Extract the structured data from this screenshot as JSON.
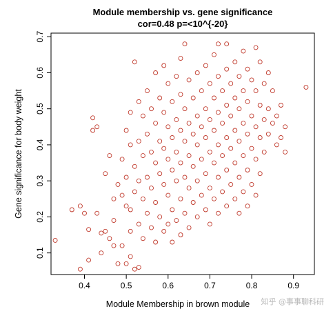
{
  "chart_data": {
    "type": "scatter",
    "title": "Module membership vs. gene significance",
    "subtitle": "cor=0.48 p=<10^{-20}",
    "xlabel": "Module Membership in brown module",
    "ylabel": "Gene significance for body weight",
    "xlim": [
      0.32,
      0.95
    ],
    "ylim": [
      0.04,
      0.71
    ],
    "x_ticks": [
      "0.4",
      "0.5",
      "0.6",
      "0.7",
      "0.8",
      "0.9"
    ],
    "y_ticks": [
      "0.1",
      "0.2",
      "0.3",
      "0.4",
      "0.5",
      "0.6",
      "0.7"
    ],
    "point_color": "#c0392b",
    "grid": false,
    "watermark": "知乎 @事事聊科研",
    "points": [
      [
        0.33,
        0.135
      ],
      [
        0.37,
        0.22
      ],
      [
        0.39,
        0.23
      ],
      [
        0.39,
        0.055
      ],
      [
        0.4,
        0.21
      ],
      [
        0.41,
        0.165
      ],
      [
        0.41,
        0.08
      ],
      [
        0.42,
        0.475
      ],
      [
        0.42,
        0.44
      ],
      [
        0.43,
        0.45
      ],
      [
        0.43,
        0.21
      ],
      [
        0.44,
        0.155
      ],
      [
        0.44,
        0.1
      ],
      [
        0.45,
        0.32
      ],
      [
        0.45,
        0.16
      ],
      [
        0.46,
        0.14
      ],
      [
        0.46,
        0.37
      ],
      [
        0.47,
        0.19
      ],
      [
        0.47,
        0.25
      ],
      [
        0.47,
        0.12
      ],
      [
        0.48,
        0.29
      ],
      [
        0.48,
        0.07
      ],
      [
        0.49,
        0.12
      ],
      [
        0.49,
        0.26
      ],
      [
        0.49,
        0.36
      ],
      [
        0.5,
        0.44
      ],
      [
        0.5,
        0.31
      ],
      [
        0.5,
        0.23
      ],
      [
        0.5,
        0.07
      ],
      [
        0.51,
        0.49
      ],
      [
        0.51,
        0.4
      ],
      [
        0.51,
        0.22
      ],
      [
        0.51,
        0.16
      ],
      [
        0.51,
        0.09
      ],
      [
        0.52,
        0.63
      ],
      [
        0.52,
        0.34
      ],
      [
        0.52,
        0.27
      ],
      [
        0.52,
        0.055
      ],
      [
        0.53,
        0.52
      ],
      [
        0.53,
        0.41
      ],
      [
        0.53,
        0.3
      ],
      [
        0.53,
        0.18
      ],
      [
        0.53,
        0.06
      ],
      [
        0.54,
        0.48
      ],
      [
        0.54,
        0.37
      ],
      [
        0.54,
        0.25
      ],
      [
        0.54,
        0.14
      ],
      [
        0.55,
        0.55
      ],
      [
        0.55,
        0.43
      ],
      [
        0.55,
        0.31
      ],
      [
        0.55,
        0.21
      ],
      [
        0.56,
        0.5
      ],
      [
        0.56,
        0.38
      ],
      [
        0.56,
        0.28
      ],
      [
        0.56,
        0.17
      ],
      [
        0.57,
        0.6
      ],
      [
        0.57,
        0.46
      ],
      [
        0.57,
        0.35
      ],
      [
        0.57,
        0.24
      ],
      [
        0.57,
        0.13
      ],
      [
        0.58,
        0.53
      ],
      [
        0.58,
        0.41
      ],
      [
        0.58,
        0.32
      ],
      [
        0.58,
        0.2
      ],
      [
        0.59,
        0.62
      ],
      [
        0.59,
        0.49
      ],
      [
        0.59,
        0.39
      ],
      [
        0.59,
        0.29
      ],
      [
        0.59,
        0.16
      ],
      [
        0.6,
        0.57
      ],
      [
        0.6,
        0.45
      ],
      [
        0.6,
        0.36
      ],
      [
        0.6,
        0.26
      ],
      [
        0.6,
        0.18
      ],
      [
        0.61,
        0.52
      ],
      [
        0.61,
        0.42
      ],
      [
        0.61,
        0.33
      ],
      [
        0.61,
        0.22
      ],
      [
        0.61,
        0.13
      ],
      [
        0.62,
        0.59
      ],
      [
        0.62,
        0.47
      ],
      [
        0.62,
        0.38
      ],
      [
        0.62,
        0.3
      ],
      [
        0.62,
        0.19
      ],
      [
        0.63,
        0.64
      ],
      [
        0.63,
        0.54
      ],
      [
        0.63,
        0.44
      ],
      [
        0.63,
        0.35
      ],
      [
        0.63,
        0.25
      ],
      [
        0.63,
        0.15
      ],
      [
        0.64,
        0.68
      ],
      [
        0.64,
        0.5
      ],
      [
        0.64,
        0.41
      ],
      [
        0.64,
        0.31
      ],
      [
        0.64,
        0.21
      ],
      [
        0.65,
        0.58
      ],
      [
        0.65,
        0.46
      ],
      [
        0.65,
        0.37
      ],
      [
        0.65,
        0.28
      ],
      [
        0.65,
        0.17
      ],
      [
        0.66,
        0.53
      ],
      [
        0.66,
        0.43
      ],
      [
        0.66,
        0.34
      ],
      [
        0.66,
        0.24
      ],
      [
        0.67,
        0.6
      ],
      [
        0.67,
        0.48
      ],
      [
        0.67,
        0.4
      ],
      [
        0.67,
        0.3
      ],
      [
        0.67,
        0.2
      ],
      [
        0.68,
        0.55
      ],
      [
        0.68,
        0.45
      ],
      [
        0.68,
        0.36
      ],
      [
        0.68,
        0.26
      ],
      [
        0.69,
        0.62
      ],
      [
        0.69,
        0.5
      ],
      [
        0.69,
        0.42
      ],
      [
        0.69,
        0.32
      ],
      [
        0.69,
        0.22
      ],
      [
        0.7,
        0.57
      ],
      [
        0.7,
        0.47
      ],
      [
        0.7,
        0.38
      ],
      [
        0.7,
        0.28
      ],
      [
        0.7,
        0.18
      ],
      [
        0.71,
        0.65
      ],
      [
        0.71,
        0.53
      ],
      [
        0.71,
        0.44
      ],
      [
        0.71,
        0.35
      ],
      [
        0.71,
        0.25
      ],
      [
        0.72,
        0.68
      ],
      [
        0.72,
        0.59
      ],
      [
        0.72,
        0.49
      ],
      [
        0.72,
        0.4
      ],
      [
        0.72,
        0.31
      ],
      [
        0.72,
        0.21
      ],
      [
        0.73,
        0.55
      ],
      [
        0.73,
        0.46
      ],
      [
        0.73,
        0.37
      ],
      [
        0.73,
        0.27
      ],
      [
        0.74,
        0.68
      ],
      [
        0.74,
        0.61
      ],
      [
        0.74,
        0.51
      ],
      [
        0.74,
        0.42
      ],
      [
        0.74,
        0.33
      ],
      [
        0.74,
        0.23
      ],
      [
        0.75,
        0.57
      ],
      [
        0.75,
        0.48
      ],
      [
        0.75,
        0.39
      ],
      [
        0.75,
        0.29
      ],
      [
        0.76,
        0.63
      ],
      [
        0.76,
        0.53
      ],
      [
        0.76,
        0.44
      ],
      [
        0.76,
        0.35
      ],
      [
        0.76,
        0.25
      ],
      [
        0.77,
        0.59
      ],
      [
        0.77,
        0.5
      ],
      [
        0.77,
        0.41
      ],
      [
        0.77,
        0.31
      ],
      [
        0.77,
        0.21
      ],
      [
        0.78,
        0.66
      ],
      [
        0.78,
        0.55
      ],
      [
        0.78,
        0.46
      ],
      [
        0.78,
        0.37
      ],
      [
        0.78,
        0.27
      ],
      [
        0.79,
        0.61
      ],
      [
        0.79,
        0.52
      ],
      [
        0.79,
        0.43
      ],
      [
        0.79,
        0.33
      ],
      [
        0.79,
        0.23
      ],
      [
        0.8,
        0.58
      ],
      [
        0.8,
        0.48
      ],
      [
        0.8,
        0.39
      ],
      [
        0.8,
        0.29
      ],
      [
        0.81,
        0.67
      ],
      [
        0.81,
        0.55
      ],
      [
        0.81,
        0.45
      ],
      [
        0.81,
        0.36
      ],
      [
        0.81,
        0.26
      ],
      [
        0.82,
        0.63
      ],
      [
        0.82,
        0.51
      ],
      [
        0.82,
        0.42
      ],
      [
        0.82,
        0.32
      ],
      [
        0.83,
        0.57
      ],
      [
        0.83,
        0.47
      ],
      [
        0.83,
        0.38
      ],
      [
        0.84,
        0.6
      ],
      [
        0.84,
        0.5
      ],
      [
        0.84,
        0.43
      ],
      [
        0.85,
        0.55
      ],
      [
        0.85,
        0.46
      ],
      [
        0.86,
        0.48
      ],
      [
        0.86,
        0.4
      ],
      [
        0.87,
        0.51
      ],
      [
        0.87,
        0.42
      ],
      [
        0.88,
        0.45
      ],
      [
        0.88,
        0.38
      ],
      [
        0.93,
        0.56
      ]
    ]
  }
}
